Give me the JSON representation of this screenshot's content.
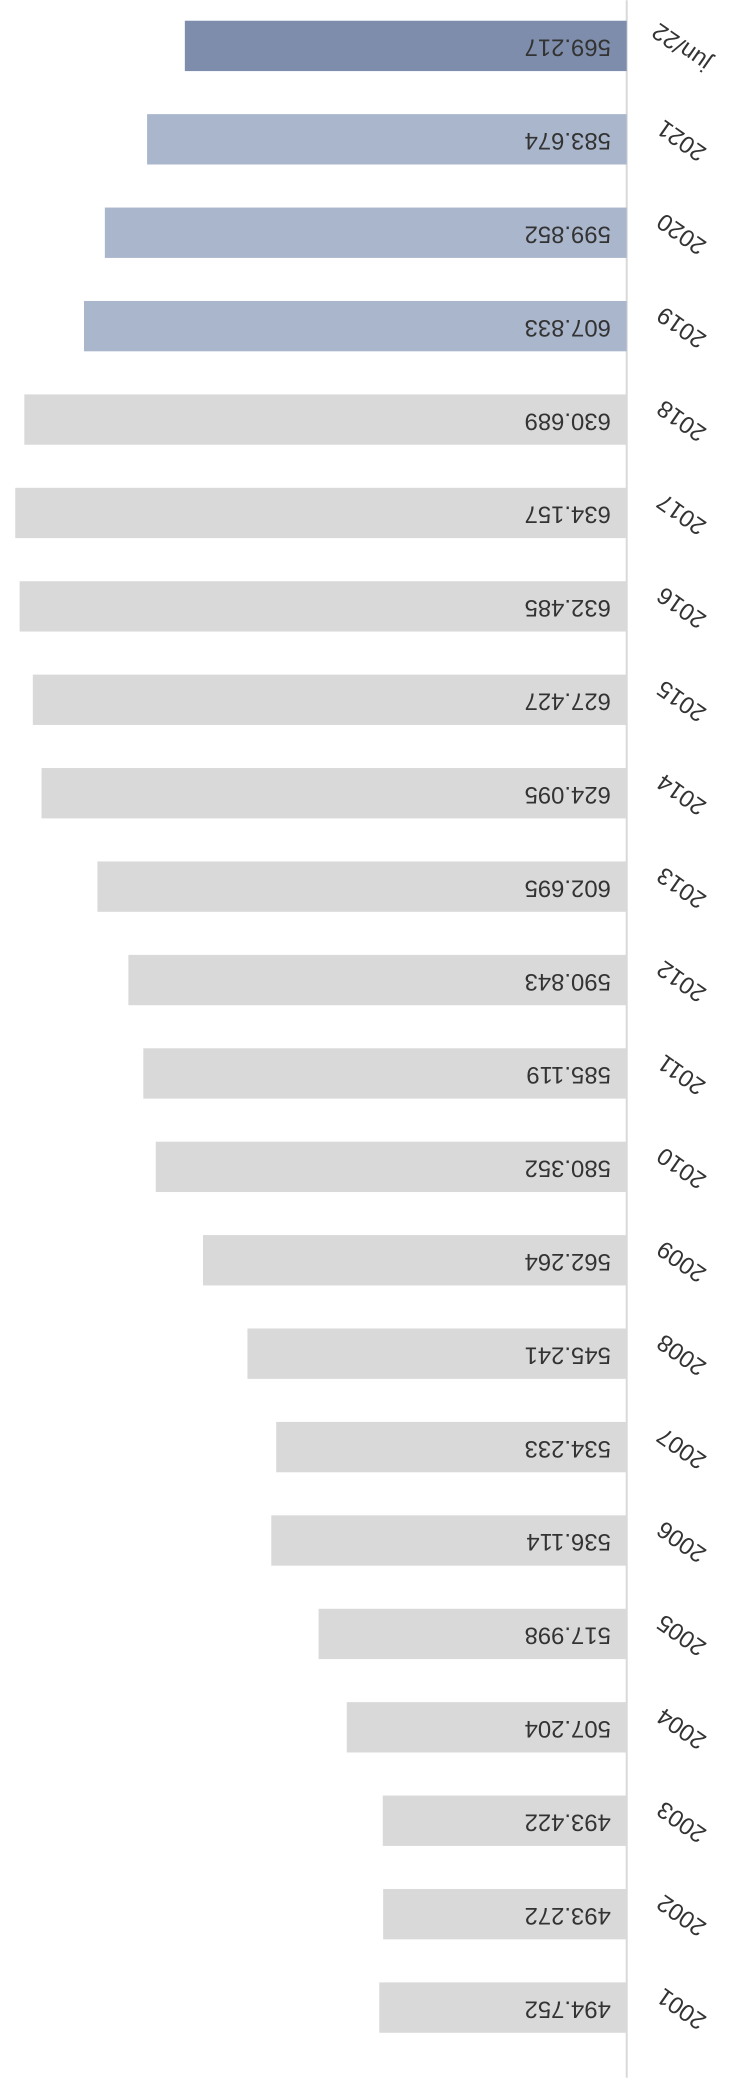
{
  "chart_data": {
    "type": "bar",
    "orientation": "horizontal",
    "categories": [
      "2001",
      "2002",
      "2003",
      "2004",
      "2005",
      "2006",
      "2007",
      "2008",
      "2009",
      "2010",
      "2011",
      "2012",
      "2013",
      "2014",
      "2015",
      "2016",
      "2017",
      "2018",
      "2019",
      "2020",
      "2021",
      "jun/22"
    ],
    "values": [
      494.752,
      493.272,
      493.422,
      507.204,
      517.998,
      536.114,
      534.233,
      545.241,
      562.264,
      580.352,
      585.119,
      590.843,
      602.695,
      624.095,
      627.427,
      632.485,
      634.157,
      630.689,
      607.833,
      599.852,
      583.674,
      569.217
    ],
    "colors": [
      "#d9d9d9",
      "#d9d9d9",
      "#d9d9d9",
      "#d9d9d9",
      "#d9d9d9",
      "#d9d9d9",
      "#d9d9d9",
      "#d9d9d9",
      "#d9d9d9",
      "#d9d9d9",
      "#d9d9d9",
      "#d9d9d9",
      "#d9d9d9",
      "#d9d9d9",
      "#d9d9d9",
      "#d9d9d9",
      "#d9d9d9",
      "#d9d9d9",
      "#a9b6cc",
      "#a9b6cc",
      "#a9b6cc",
      "#7d8dab"
    ],
    "xlim": [
      400,
      640
    ]
  }
}
